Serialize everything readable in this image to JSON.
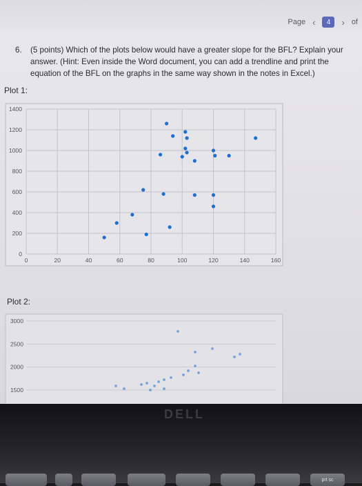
{
  "header": {
    "page_label": "Page",
    "page_number": "4",
    "of_label": "of"
  },
  "question": {
    "number": "6.",
    "text": "(5 points) Which of the plots below would have a greater slope for the BFL? Explain your answer. (Hint: Even inside the Word document, you can add a trendline and print the equation of the BFL on the graphs in the same way shown in the notes in Excel.)"
  },
  "plot1": {
    "label": "Plot 1:",
    "chart_data": {
      "type": "scatter",
      "x_ticks": [
        "0",
        "20",
        "40",
        "60",
        "80",
        "100",
        "120",
        "140",
        "160"
      ],
      "y_ticks": [
        "0",
        "200",
        "400",
        "600",
        "800",
        "1000",
        "1200",
        "1400"
      ],
      "xlim": [
        0,
        160
      ],
      "ylim": [
        0,
        1400
      ],
      "grid": true,
      "color": "#1f6fd1",
      "points": [
        [
          90,
          1260
        ],
        [
          94,
          1140
        ],
        [
          102,
          1180
        ],
        [
          103,
          1120
        ],
        [
          102,
          1020
        ],
        [
          103,
          980
        ],
        [
          100,
          940
        ],
        [
          86,
          960
        ],
        [
          108,
          900
        ],
        [
          120,
          1000
        ],
        [
          121,
          950
        ],
        [
          130,
          950
        ],
        [
          147,
          1120
        ],
        [
          75,
          620
        ],
        [
          88,
          580
        ],
        [
          108,
          570
        ],
        [
          120,
          570
        ],
        [
          120,
          460
        ],
        [
          68,
          380
        ],
        [
          58,
          300
        ],
        [
          92,
          260
        ],
        [
          77,
          190
        ],
        [
          50,
          160
        ]
      ]
    }
  },
  "plot2": {
    "label": "Plot 2:",
    "chart_data": {
      "type": "scatter",
      "y_ticks": [
        "3000",
        "2500",
        "2000",
        "1500"
      ],
      "grid": true,
      "color": "#1f6fd1",
      "points_visible": "partial"
    }
  },
  "device": {
    "brand": "DELL",
    "key_label": "prt sc"
  }
}
